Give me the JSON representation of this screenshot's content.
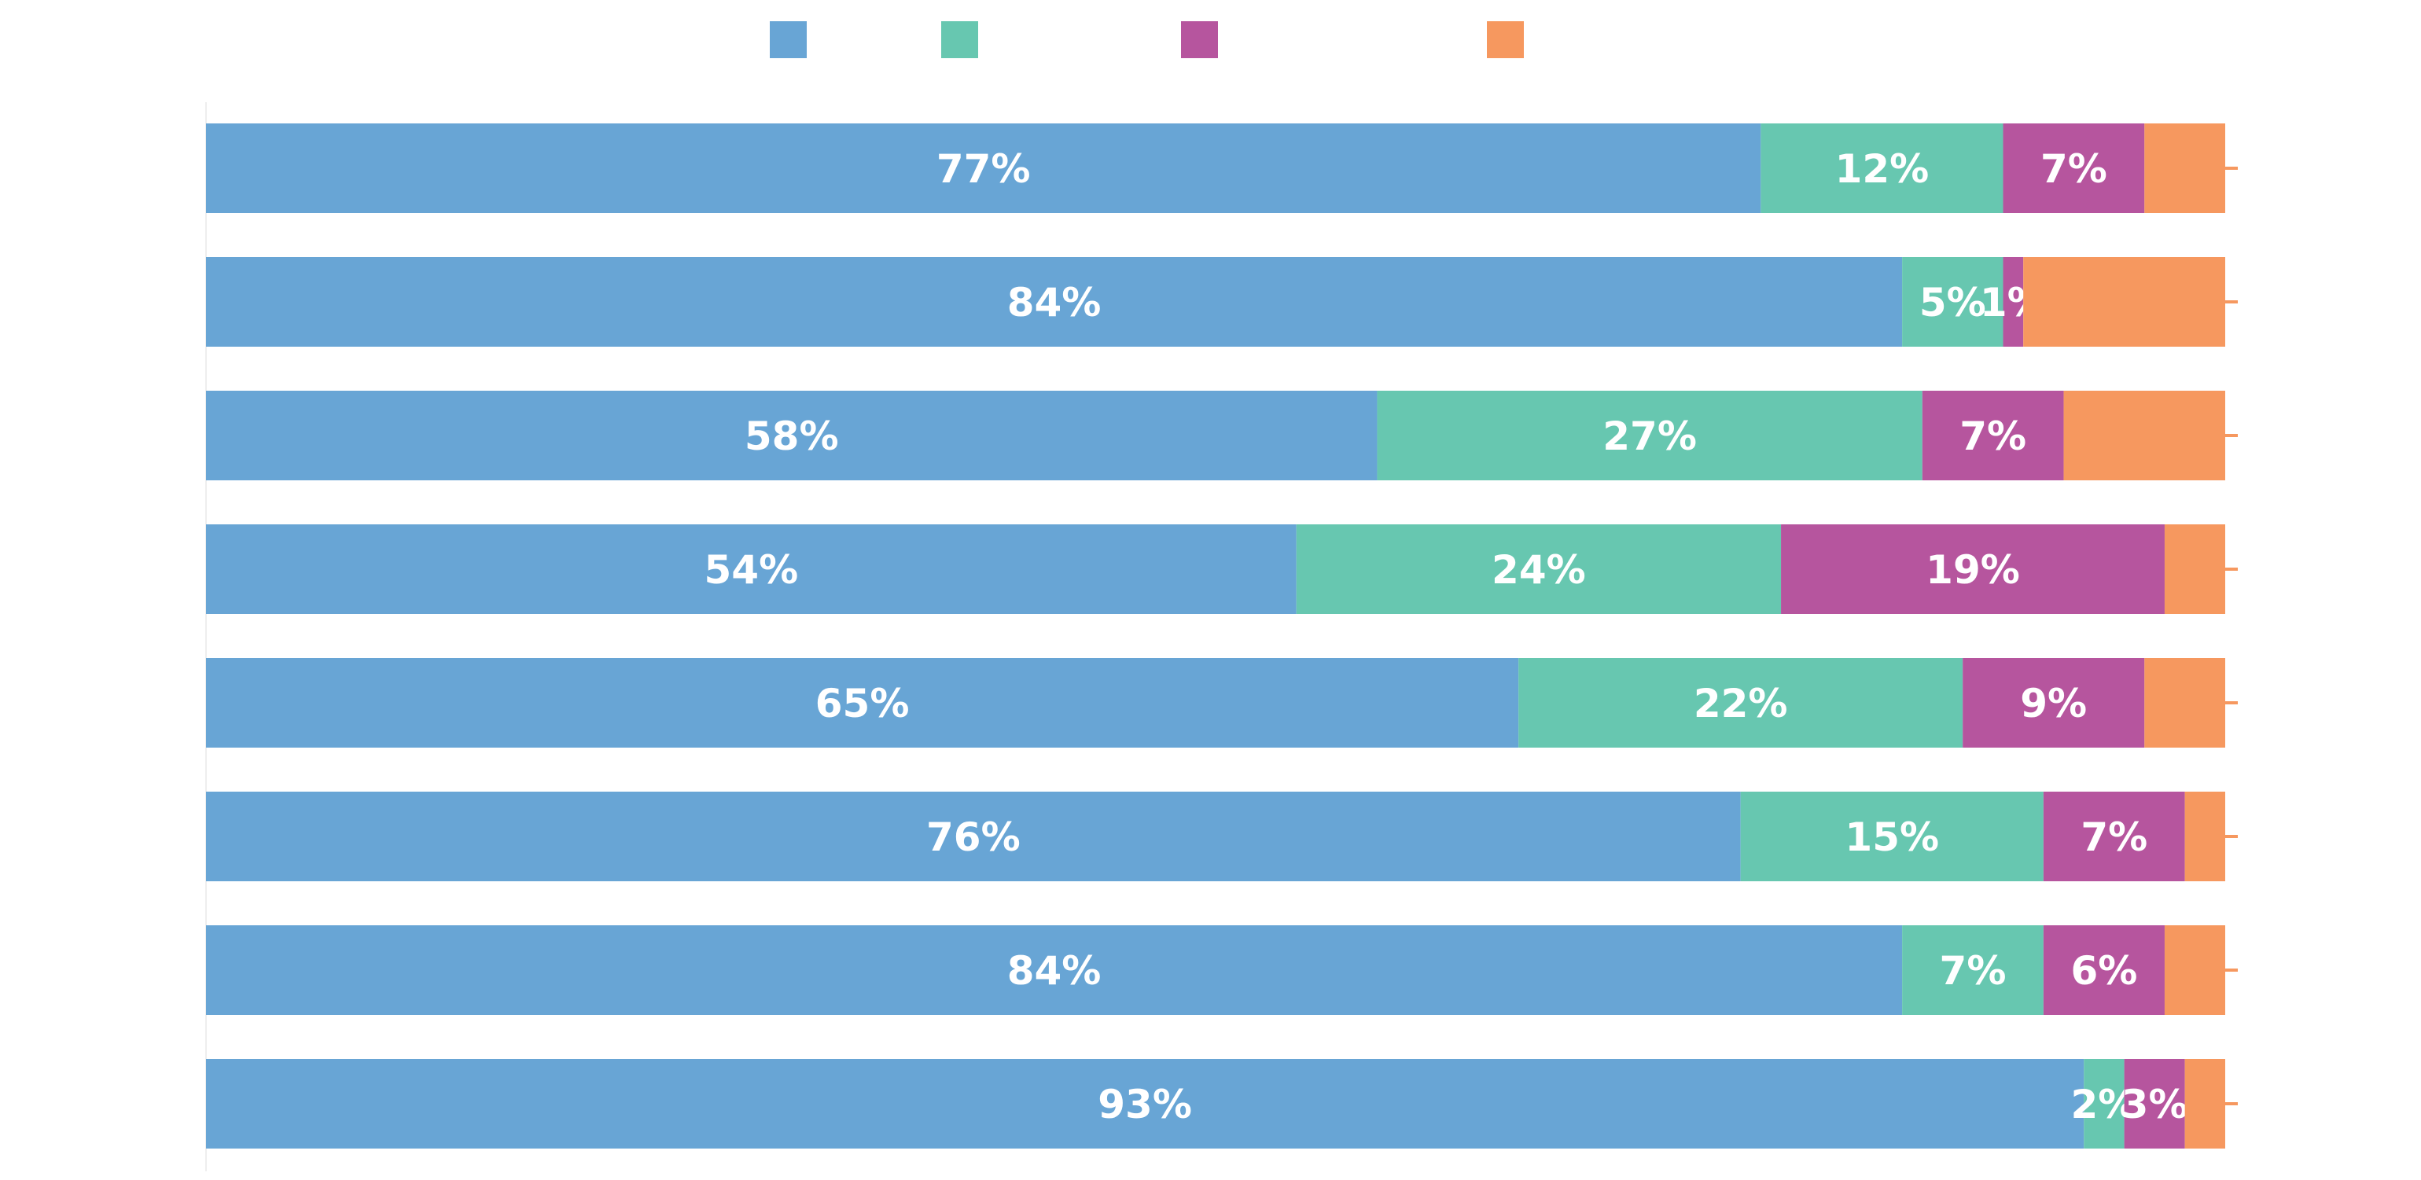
{
  "chart_data": {
    "type": "bar",
    "orientation": "horizontal",
    "stacked": true,
    "title": "",
    "xlabel": "",
    "ylabel": "",
    "xlim": [
      0,
      100
    ],
    "grid": false,
    "legend": {
      "position": "top",
      "entries": [
        {
          "name": "",
          "color": "#68a5d5"
        },
        {
          "name": "",
          "color": "#67c7b0"
        },
        {
          "name": "",
          "color": "#b6559e"
        },
        {
          "name": "",
          "color": "#f6985f"
        }
      ]
    },
    "categories": [
      "",
      "",
      "",
      "",
      "",
      "",
      "",
      ""
    ],
    "series": [
      {
        "color": "#68a5d5",
        "values": [
          77,
          84,
          58,
          54,
          65,
          76,
          84,
          93
        ]
      },
      {
        "color": "#67c7b0",
        "values": [
          12,
          5,
          27,
          24,
          22,
          15,
          7,
          2
        ]
      },
      {
        "color": "#b6559e",
        "values": [
          7,
          1,
          7,
          19,
          9,
          7,
          6,
          3
        ]
      },
      {
        "color": "#f6985f",
        "values": [
          3,
          10,
          7,
          3,
          4,
          3,
          3,
          2
        ]
      }
    ],
    "data_labels": [
      [
        "77%",
        "12%",
        "7%",
        ""
      ],
      [
        "84%",
        "5%",
        "1%",
        ""
      ],
      [
        "58%",
        "27%",
        "7%",
        ""
      ],
      [
        "54%",
        "24%",
        "19%",
        ""
      ],
      [
        "65%",
        "22%",
        "9%",
        ""
      ],
      [
        "76%",
        "15%",
        "7%",
        ""
      ],
      [
        "84%",
        "7%",
        "6%",
        ""
      ],
      [
        "93%",
        "2%",
        "3%",
        ""
      ]
    ]
  }
}
